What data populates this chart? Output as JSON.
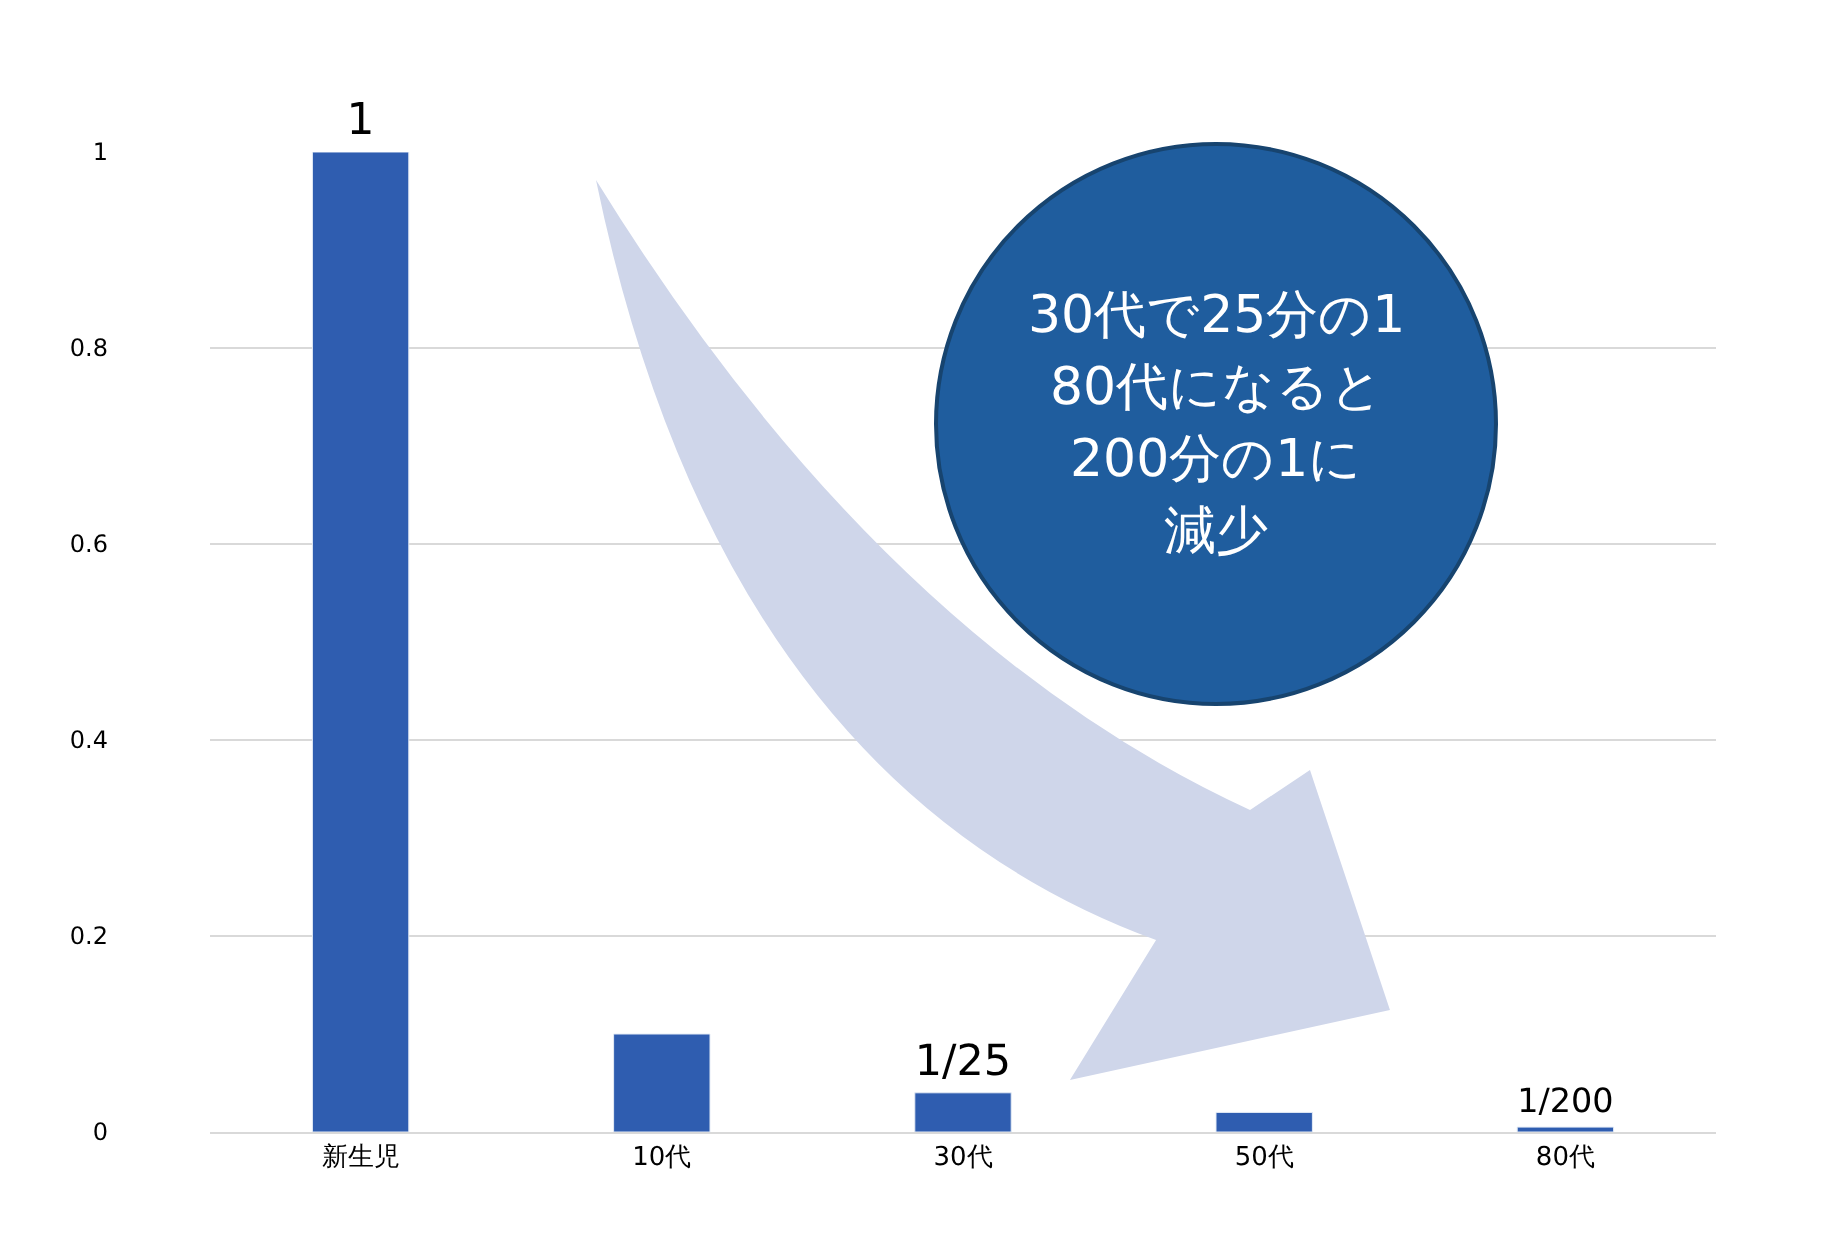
{
  "chart_data": {
    "type": "bar",
    "categories": [
      "新生児",
      "10代",
      "30代",
      "50代",
      "80代"
    ],
    "values": [
      1,
      0.1,
      0.04,
      0.02,
      0.005
    ],
    "value_labels": [
      "1",
      null,
      "1/25",
      null,
      "1/200"
    ],
    "color": "#2f5db0",
    "ylim": [
      0,
      1
    ],
    "yticks": [
      0,
      0.2,
      0.4,
      0.6,
      0.8,
      1
    ],
    "grid": "y",
    "annotations": [
      "30代で25分の1",
      "80代になると",
      "200分の1に",
      "減少"
    ]
  }
}
